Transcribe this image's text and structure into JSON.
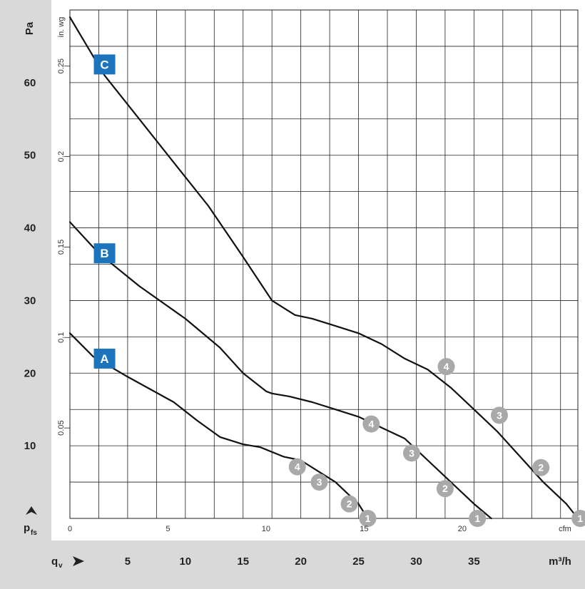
{
  "chart_data": {
    "type": "line",
    "title": "",
    "x_axis": {
      "label": "qv",
      "unit": "m³/h",
      "ticks": [
        "5",
        "10",
        "15",
        "20",
        "25",
        "30",
        "35"
      ],
      "range": [
        0,
        44
      ]
    },
    "x_axis_secondary": {
      "unit": "cfm",
      "ticks": [
        "0",
        "5",
        "10",
        "15",
        "20"
      ]
    },
    "y_axis": {
      "label": "pfs",
      "unit": "Pa",
      "ticks": [
        "10",
        "20",
        "30",
        "40",
        "50",
        "60"
      ],
      "range": [
        0,
        70
      ]
    },
    "y_axis_secondary": {
      "unit": "in. wg",
      "ticks": [
        "0.05",
        "0.1",
        "0.15",
        "0.2",
        "0.25"
      ]
    },
    "grid": true,
    "series": [
      {
        "name": "A",
        "x": [
          0,
          2,
          5,
          9,
          11,
          13,
          15,
          16.5,
          18.5,
          20,
          21.5,
          23,
          24,
          25,
          25.8
        ],
        "y": [
          25.5,
          22.3,
          19.5,
          16,
          13.5,
          11.2,
          10.2,
          9.8,
          8.5,
          8,
          6.5,
          5,
          3.5,
          2,
          0
        ]
      },
      {
        "name": "B",
        "x": [
          0,
          2.5,
          6,
          10,
          13,
          15,
          17,
          17.5,
          19,
          21,
          23,
          25,
          27,
          29,
          31,
          33,
          35,
          36.5
        ],
        "y": [
          40.8,
          36.5,
          32,
          27.5,
          23.5,
          20,
          17.5,
          17.2,
          16.8,
          16,
          15,
          14,
          12.5,
          11,
          8,
          5,
          2,
          0
        ]
      },
      {
        "name": "C",
        "x": [
          0,
          3,
          6,
          9,
          12,
          15,
          17.5,
          19.5,
          21,
          23,
          25,
          27,
          29,
          31,
          33,
          35,
          37,
          39,
          41,
          43,
          44
        ],
        "y": [
          69,
          61,
          55,
          49,
          43,
          36,
          30,
          28,
          27.5,
          26.5,
          25.5,
          24,
          22,
          20.5,
          18,
          15,
          12,
          8.5,
          5,
          2,
          0
        ]
      }
    ],
    "curve_labels": [
      {
        "text": "A",
        "x": 3,
        "y": 22
      },
      {
        "text": "B",
        "x": 3,
        "y": 36.5
      },
      {
        "text": "C",
        "x": 3,
        "y": 62.5
      }
    ],
    "operating_points": [
      {
        "label": "4",
        "x": 19.7,
        "y": 7.1
      },
      {
        "label": "3",
        "x": 21.6,
        "y": 5.0
      },
      {
        "label": "2",
        "x": 24.2,
        "y": 2.0
      },
      {
        "label": "1",
        "x": 25.8,
        "y": 0.0
      },
      {
        "label": "4",
        "x": 26.1,
        "y": 13.0
      },
      {
        "label": "3",
        "x": 29.6,
        "y": 9.0
      },
      {
        "label": "2",
        "x": 32.5,
        "y": 4.1
      },
      {
        "label": "1",
        "x": 35.3,
        "y": 0.0
      },
      {
        "label": "4",
        "x": 32.6,
        "y": 20.9
      },
      {
        "label": "3",
        "x": 37.2,
        "y": 14.2
      },
      {
        "label": "2",
        "x": 40.8,
        "y": 7.0
      },
      {
        "label": "1",
        "x": 44.2,
        "y": 0.0
      }
    ]
  },
  "colors": {
    "band": "#d9d9d9",
    "curve": "#111111",
    "label_box": "#1c75bc",
    "operating_point": "#a9a9a9",
    "grid": "#222222"
  }
}
